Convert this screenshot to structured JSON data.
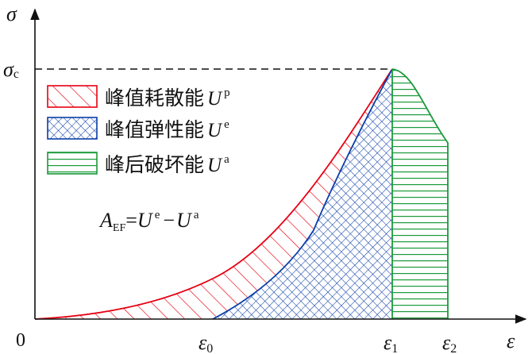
{
  "axes": {
    "y_symbol": "σ",
    "x_symbol": "ε",
    "origin_label": "0",
    "peak_stress_symbol": "σ",
    "peak_stress_subscript": "c",
    "strain_symbol": "ε",
    "strain_0_subscript": "0",
    "strain_1_subscript": "1",
    "strain_2_subscript": "2"
  },
  "legend": {
    "items": [
      {
        "label": "峰值耗散能",
        "energy_symbol": "U",
        "superscript": "p",
        "pattern": "red-diagonal-hatch",
        "color": "#e60012"
      },
      {
        "label": "峰值弹性能",
        "energy_symbol": "U",
        "superscript": "e",
        "pattern": "blue-crosshatch",
        "color": "#0a3ea8"
      },
      {
        "label": "峰后破坏能",
        "energy_symbol": "U",
        "superscript": "a",
        "pattern": "green-horizontal-lines",
        "color": "#1a9a3a"
      }
    ]
  },
  "formula": {
    "lhs_symbol": "A",
    "lhs_subscript": "EF",
    "equals": "=",
    "term1_symbol": "U",
    "term1_superscript": "e",
    "minus": "−",
    "term2_symbol": "U",
    "term2_superscript": "a"
  },
  "colors": {
    "dissipated": "#e60012",
    "elastic": "#0a3ea8",
    "failure": "#1a9a3a",
    "axis": "#111111"
  }
}
